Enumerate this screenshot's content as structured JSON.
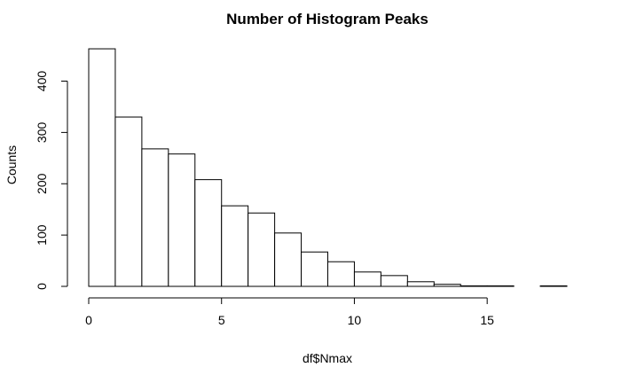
{
  "chart_data": {
    "type": "bar",
    "title": "Number of Histogram Peaks",
    "xlabel": "df$Nmax",
    "ylabel": "Counts",
    "bin_edges": [
      0,
      1,
      2,
      3,
      4,
      5,
      6,
      7,
      8,
      9,
      10,
      11,
      12,
      13,
      14,
      15,
      16,
      17,
      18
    ],
    "values": [
      463,
      330,
      268,
      258,
      208,
      157,
      143,
      104,
      67,
      48,
      28,
      21,
      9,
      4,
      1,
      1,
      0,
      1
    ],
    "xlim": [
      0,
      18
    ],
    "ylim": [
      0,
      470
    ],
    "xticks": [
      0,
      5,
      10,
      15
    ],
    "yticks": [
      0,
      100,
      200,
      300,
      400
    ],
    "grid": false,
    "legend": "none"
  }
}
